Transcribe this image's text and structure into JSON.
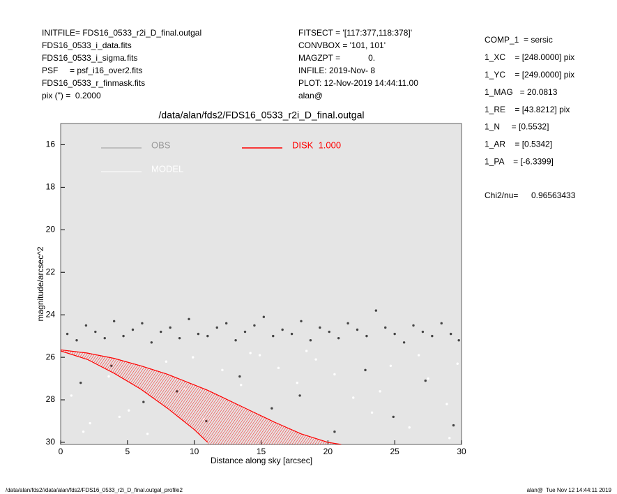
{
  "header": {
    "left": [
      "INITFILE= FDS16_0533_r2i_D_final.outgal",
      "FDS16_0533_i_data.fits",
      "FDS16_0533_i_sigma.fits",
      "PSF     = psf_i16_over2.fits",
      "FDS16_0533_r_finmask.fits",
      "pix (\") =  0.2000"
    ],
    "middle": [
      "FITSECT = '[117:377,118:378]'",
      "CONVBOX = '101, 101'",
      "MAGZPT =            0.",
      "INFILE: 2019-Nov- 8",
      "PLOT: 12-Nov-2019 14:44:11.00",
      "alan@"
    ],
    "right": [
      "COMP_1  = sersic",
      "1_XC    = [248.0000] pix",
      "1_YC    = [249.0000] pix",
      "1_MAG   = 20.0813",
      "1_RE    = [43.8212] pix",
      "1_N     = [0.5532]",
      "1_AR    = [0.5342]",
      "1_PA    = [-6.3399]"
    ],
    "chi_label": "Chi2/nu=",
    "chi_value": "0.96563433"
  },
  "footer": {
    "left": "/data/alan/fds2//data/alan/fds2/FDS16_0533_r2i_D_final.outgal_profile2",
    "right": "alan@  Tue Nov 12 14:44:11 2019"
  },
  "chart_data": {
    "type": "scatter",
    "title": "/data/alan/fds2/FDS16_0533_r2i_D_final.outgal",
    "xlabel": "Distance along sky [arcsec]",
    "ylabel": "magnitude/arcsec^2",
    "xlim": [
      0,
      30
    ],
    "ylim": [
      30.1,
      15
    ],
    "xticks": [
      0,
      5,
      10,
      15,
      20,
      25,
      30
    ],
    "yticks": [
      16,
      18,
      20,
      22,
      24,
      26,
      28,
      30
    ],
    "background": "#e5e5e5",
    "series": [
      {
        "name": "OBS",
        "color": "#444444",
        "legend_color": "#999999",
        "x": [
          0.5,
          1.2,
          1.9,
          2.6,
          3.3,
          4.0,
          4.7,
          5.4,
          6.1,
          6.8,
          7.5,
          8.2,
          8.9,
          9.6,
          10.3,
          11.0,
          11.7,
          12.4,
          13.1,
          13.8,
          14.5,
          15.2,
          15.9,
          16.6,
          17.3,
          18.0,
          18.7,
          19.4,
          20.1,
          20.8,
          21.5,
          22.2,
          22.9,
          23.6,
          24.3,
          25.0,
          25.7,
          26.4,
          27.1,
          27.8,
          28.5,
          29.2,
          29.8,
          1.5,
          3.8,
          6.2,
          8.7,
          10.9,
          13.4,
          15.8,
          17.9,
          20.5,
          22.8,
          24.9,
          27.3,
          29.4
        ],
        "values": [
          24.9,
          25.2,
          24.5,
          24.8,
          25.1,
          24.3,
          25.0,
          24.7,
          24.4,
          25.3,
          24.8,
          24.6,
          25.1,
          24.2,
          24.9,
          25.0,
          24.6,
          24.4,
          25.2,
          24.8,
          24.5,
          24.1,
          25.0,
          24.7,
          24.9,
          24.3,
          25.2,
          24.6,
          24.8,
          25.1,
          24.4,
          24.7,
          25.0,
          23.8,
          24.6,
          24.9,
          25.3,
          24.5,
          24.8,
          25.0,
          24.4,
          24.9,
          25.2,
          27.2,
          26.4,
          28.1,
          27.6,
          29.0,
          26.9,
          28.4,
          27.8,
          29.5,
          26.6,
          28.8,
          27.1,
          29.2
        ]
      },
      {
        "name": "MODEL",
        "color": "#ffffff",
        "legend_color": "#ffffff",
        "x": [
          0.8,
          2.2,
          3.6,
          5.1,
          6.5,
          7.9,
          9.3,
          10.7,
          12.1,
          13.5,
          14.9,
          16.3,
          17.7,
          19.1,
          20.5,
          21.9,
          23.3,
          24.7,
          26.1,
          27.5,
          28.9,
          29.7,
          1.7,
          4.4,
          9.9,
          14.2,
          18.4,
          23.9,
          26.8,
          29.1
        ],
        "values": [
          27.8,
          29.1,
          26.9,
          28.5,
          29.6,
          26.2,
          27.5,
          28.9,
          26.6,
          27.3,
          25.9,
          26.5,
          27.2,
          26.1,
          26.8,
          27.9,
          28.6,
          26.4,
          29.3,
          27.0,
          28.2,
          26.3,
          29.5,
          28.8,
          26.0,
          25.8,
          25.7,
          27.6,
          25.9,
          29.8
        ]
      },
      {
        "name": "DISK  1.000",
        "color": "#ff0000",
        "legend_color": "#ff0000",
        "style": "band",
        "x": [
          0,
          2,
          4,
          6,
          8,
          10,
          11,
          12,
          14,
          16,
          18,
          20,
          21
        ],
        "values": [
          25.65,
          25.8,
          26.05,
          26.4,
          26.8,
          27.3,
          27.55,
          27.85,
          28.45,
          29.05,
          29.6,
          30.0,
          30.1
        ],
        "lower": [
          25.7,
          26.1,
          26.75,
          27.5,
          28.4,
          29.4,
          30.0,
          null,
          null,
          null,
          null,
          null,
          null
        ]
      }
    ]
  }
}
